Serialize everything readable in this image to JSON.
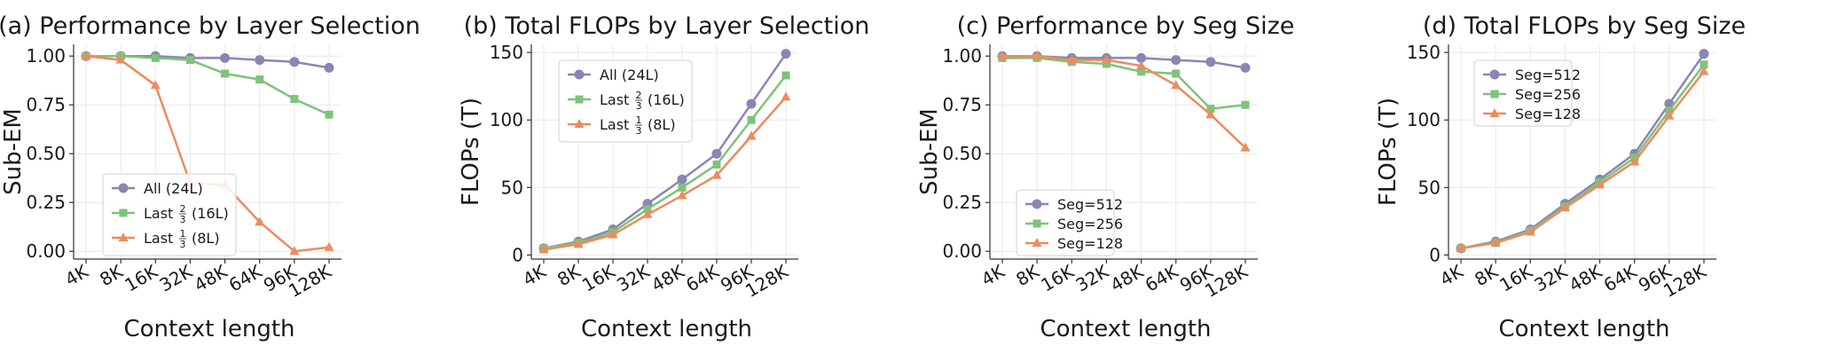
{
  "chart_data": [
    {
      "type": "line",
      "title": "(a) Performance by Layer Selection",
      "xlabel": "Context length",
      "ylabel": "Sub-EM",
      "categories": [
        "4K",
        "8K",
        "16K",
        "32K",
        "48K",
        "64K",
        "96K",
        "128K"
      ],
      "ylim": [
        -0.04,
        1.06
      ],
      "yticks": [
        "0.00",
        "0.25",
        "0.50",
        "0.75",
        "1.00"
      ],
      "ytick_values": [
        0,
        0.25,
        0.5,
        0.75,
        1.0
      ],
      "grid": true,
      "legend_position": "lower-left",
      "series": [
        {
          "name_main": "All (24L)",
          "name_frac": "",
          "name_suffix": "",
          "color": "#8a86b3",
          "marker": "circle",
          "values": [
            1.0,
            1.0,
            1.0,
            0.99,
            0.99,
            0.98,
            0.97,
            0.94
          ]
        },
        {
          "name_main": "Last",
          "name_frac": "2/3",
          "name_suffix": "(16L)",
          "color": "#7fc27a",
          "marker": "square",
          "values": [
            1.0,
            1.0,
            0.99,
            0.98,
            0.91,
            0.88,
            0.78,
            0.7
          ]
        },
        {
          "name_main": "Last",
          "name_frac": "1/3",
          "name_suffix": "(8L)",
          "color": "#ec8c5f",
          "marker": "triangle",
          "values": [
            1.0,
            0.98,
            0.85,
            0.35,
            0.34,
            0.15,
            0.0,
            0.02
          ]
        }
      ]
    },
    {
      "type": "line",
      "title": "(b) Total FLOPs by Layer Selection",
      "xlabel": "Context length",
      "ylabel": "FLOPs (T)",
      "categories": [
        "4K",
        "8K",
        "16K",
        "32K",
        "48K",
        "64K",
        "96K",
        "128K"
      ],
      "ylim": [
        -3,
        156
      ],
      "yticks": [
        "0",
        "50",
        "100",
        "150"
      ],
      "ytick_values": [
        0,
        50,
        100,
        150
      ],
      "grid": true,
      "legend_position": "upper-left",
      "series": [
        {
          "name_main": "All (24L)",
          "name_frac": "",
          "name_suffix": "",
          "color": "#8a86b3",
          "marker": "circle",
          "values": [
            5,
            10,
            19,
            38,
            56,
            75,
            112,
            149
          ]
        },
        {
          "name_main": "Last",
          "name_frac": "2/3",
          "name_suffix": "(16L)",
          "color": "#7fc27a",
          "marker": "square",
          "values": [
            5,
            9,
            17,
            34,
            50,
            67,
            100,
            133
          ]
        },
        {
          "name_main": "Last",
          "name_frac": "1/3",
          "name_suffix": "(8L)",
          "color": "#ec8c5f",
          "marker": "triangle",
          "values": [
            4,
            8,
            15,
            30,
            44,
            59,
            88,
            117
          ]
        }
      ]
    },
    {
      "type": "line",
      "title": "(c) Performance by Seg Size",
      "xlabel": "Context length",
      "ylabel": "Sub-EM",
      "categories": [
        "4K",
        "8K",
        "16K",
        "32K",
        "48K",
        "64K",
        "96K",
        "128K"
      ],
      "ylim": [
        -0.04,
        1.06
      ],
      "yticks": [
        "0.00",
        "0.25",
        "0.50",
        "0.75",
        "1.00"
      ],
      "ytick_values": [
        0,
        0.25,
        0.5,
        0.75,
        1.0
      ],
      "grid": true,
      "legend_position": "lower-left",
      "series": [
        {
          "name_main": "Seg=512",
          "name_frac": "",
          "name_suffix": "",
          "color": "#8a86b3",
          "marker": "circle",
          "values": [
            1.0,
            1.0,
            0.99,
            0.99,
            0.99,
            0.98,
            0.97,
            0.94
          ]
        },
        {
          "name_main": "Seg=256",
          "name_frac": "",
          "name_suffix": "",
          "color": "#7fc27a",
          "marker": "square",
          "values": [
            0.99,
            0.99,
            0.97,
            0.96,
            0.92,
            0.91,
            0.73,
            0.75
          ]
        },
        {
          "name_main": "Seg=128",
          "name_frac": "",
          "name_suffix": "",
          "color": "#ec8c5f",
          "marker": "triangle",
          "values": [
            1.0,
            1.0,
            0.98,
            0.98,
            0.95,
            0.85,
            0.7,
            0.53
          ]
        }
      ]
    },
    {
      "type": "line",
      "title": "(d) Total FLOPs by Seg Size",
      "xlabel": "Context length",
      "ylabel": "FLOPs (T)",
      "categories": [
        "4K",
        "8K",
        "16K",
        "32K",
        "48K",
        "64K",
        "96K",
        "128K"
      ],
      "ylim": [
        -3,
        156
      ],
      "yticks": [
        "0",
        "50",
        "100",
        "150"
      ],
      "ytick_values": [
        0,
        50,
        100,
        150
      ],
      "grid": true,
      "legend_position": "upper-left",
      "series": [
        {
          "name_main": "Seg=512",
          "name_frac": "",
          "name_suffix": "",
          "color": "#8a86b3",
          "marker": "circle",
          "values": [
            5,
            10,
            19,
            38,
            56,
            75,
            112,
            149
          ]
        },
        {
          "name_main": "Seg=256",
          "name_frac": "",
          "name_suffix": "",
          "color": "#7fc27a",
          "marker": "square",
          "values": [
            5,
            9,
            18,
            36,
            54,
            72,
            107,
            141
          ]
        },
        {
          "name_main": "Seg=128",
          "name_frac": "",
          "name_suffix": "",
          "color": "#ec8c5f",
          "marker": "triangle",
          "values": [
            5,
            9,
            17,
            35,
            52,
            69,
            103,
            136
          ]
        }
      ]
    }
  ]
}
